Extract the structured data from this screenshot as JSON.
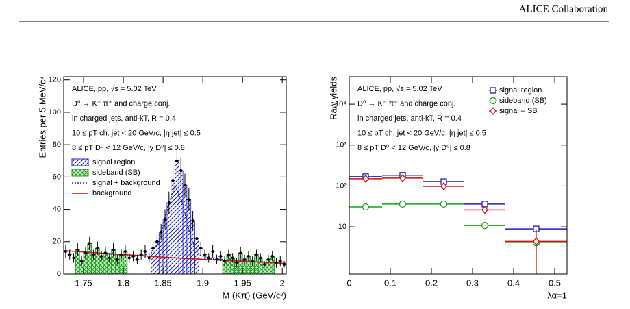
{
  "header": {
    "title": "ALICE Collaboration"
  },
  "chart_data": [
    {
      "type": "histogram",
      "annotations": [
        "ALICE, pp, √s = 5.02 TeV",
        "D⁰ → K⁻ π⁺ and charge conj.",
        "in charged jets, anti-kT, R = 0.4",
        "10 ≤ pT ch. jet < 20 GeV/c, |η jet| ≤ 0.5",
        "8 ≤ pT D⁰ < 12 GeV/c, |y D⁰| ≤ 0.8"
      ],
      "x_label": "M (Kπ) (GeV/c²)",
      "y_label": "Entries per 5 MeV/c²",
      "xlim": [
        1.725,
        2.005
      ],
      "xticks": [
        1.75,
        1.8,
        1.85,
        1.9,
        1.95,
        {
          "value": 2.0,
          "label": "2"
        }
      ],
      "ylim": [
        0,
        122
      ],
      "yticks": [
        0,
        20,
        40,
        60,
        80,
        100,
        120
      ],
      "legend": "upper left",
      "bins": [
        1.725,
        1.73,
        1.735,
        1.74,
        1.745,
        1.75,
        1.755,
        1.76,
        1.765,
        1.77,
        1.775,
        1.78,
        1.785,
        1.79,
        1.795,
        1.8,
        1.805,
        1.81,
        1.815,
        1.82,
        1.825,
        1.83,
        1.835,
        1.84,
        1.845,
        1.85,
        1.855,
        1.86,
        1.865,
        1.87,
        1.875,
        1.88,
        1.885,
        1.89,
        1.895,
        1.9,
        1.905,
        1.91,
        1.915,
        1.92,
        1.925,
        1.93,
        1.935,
        1.94,
        1.945,
        1.95,
        1.955,
        1.96,
        1.965,
        1.97,
        1.975,
        1.98,
        1.985,
        1.99,
        1.995,
        2.0,
        2.005
      ],
      "values": [
        14,
        12,
        10,
        15,
        8,
        13,
        19,
        12,
        16,
        11,
        13,
        10,
        15,
        9,
        12,
        14,
        10,
        11,
        9,
        12,
        14,
        10,
        16,
        20,
        26,
        34,
        44,
        58,
        70,
        64,
        55,
        46,
        33,
        22,
        16,
        12,
        10,
        14,
        9,
        11,
        8,
        12,
        10,
        7,
        13,
        9,
        11,
        8,
        12,
        10,
        6,
        9,
        11,
        7,
        8,
        6
      ],
      "errors": [
        4,
        3,
        3,
        4,
        3,
        4,
        4,
        3,
        4,
        3,
        4,
        3,
        4,
        3,
        3,
        4,
        3,
        3,
        3,
        3,
        4,
        3,
        4,
        4,
        5,
        6,
        7,
        8,
        8,
        8,
        7,
        7,
        6,
        5,
        4,
        3,
        3,
        4,
        3,
        3,
        3,
        3,
        3,
        3,
        4,
        3,
        3,
        3,
        3,
        3,
        2,
        3,
        3,
        3,
        3,
        2
      ],
      "color": "#000000",
      "regions": [
        {
          "name": "signal region",
          "color": "#1f1fb4",
          "pattern": "hatch",
          "ranges": [
            [
              1.835,
              1.895
            ]
          ]
        },
        {
          "name": "sideband (SB)",
          "color": "#17a017",
          "pattern": "cross",
          "ranges": [
            [
              1.74,
              1.805
            ],
            [
              1.925,
              1.99
            ]
          ]
        }
      ],
      "fits": [
        {
          "name": "signal + background",
          "color": "#2020d0",
          "dash": true,
          "x": [
            1.725,
            1.8,
            1.825,
            1.835,
            1.845,
            1.855,
            1.865,
            1.875,
            1.885,
            1.895,
            1.91,
            2.005
          ],
          "values": [
            14.5,
            11.8,
            11.5,
            13,
            20,
            40,
            55,
            43,
            22,
            12,
            9.5,
            6.5
          ]
        },
        {
          "name": "background",
          "color": "#cc1111",
          "dash": false,
          "x": [
            1.725,
            1.865,
            2.005
          ],
          "values": [
            14.5,
            10,
            6.5
          ]
        }
      ]
    },
    {
      "type": "scatter",
      "annotations": [
        "ALICE, pp, √s = 5.02 TeV",
        "D⁰ → K⁻ π⁺ and charge conj.",
        "in charged jets, anti-kT, R = 0.4",
        "10 ≤ pT ch. jet < 20 GeV/c, |η jet| ≤ 0.5",
        "8 ≤ pT D⁰ < 12 GeV/c, |y D⁰| ≤ 0.8"
      ],
      "x_label": "λα=1",
      "y_label": "Raw yields",
      "xlim": [
        0,
        0.53
      ],
      "xticks": [
        0,
        0.1,
        0.2,
        0.3,
        0.4,
        0.5
      ],
      "ylim": [
        0.7,
        47000
      ],
      "log_y": true,
      "yticks": [
        10,
        {
          "value": 100,
          "label": "10²"
        },
        {
          "value": 1000,
          "label": "10³"
        },
        {
          "value": 10000,
          "label": "10⁴"
        }
      ],
      "legend": "upper right",
      "bins": [
        0,
        0.08,
        0.18,
        0.28,
        0.38,
        0.53
      ],
      "series": [
        {
          "name": "signal region",
          "color": "#1f1fb4",
          "marker": "square",
          "values": [
            169,
            183,
            128,
            36,
            8.9
          ]
        },
        {
          "name": "sideband (SB)",
          "color": "#17a017",
          "marker": "circle",
          "values": [
            30.7,
            36,
            36,
            10.8,
            4.1
          ]
        },
        {
          "name": "signal – SB",
          "color": "#cc1111",
          "marker": "diamond",
          "values": [
            150,
            156,
            98,
            26,
            4.4
          ],
          "errors": [
            5,
            5,
            5,
            2,
            4
          ]
        }
      ]
    }
  ]
}
